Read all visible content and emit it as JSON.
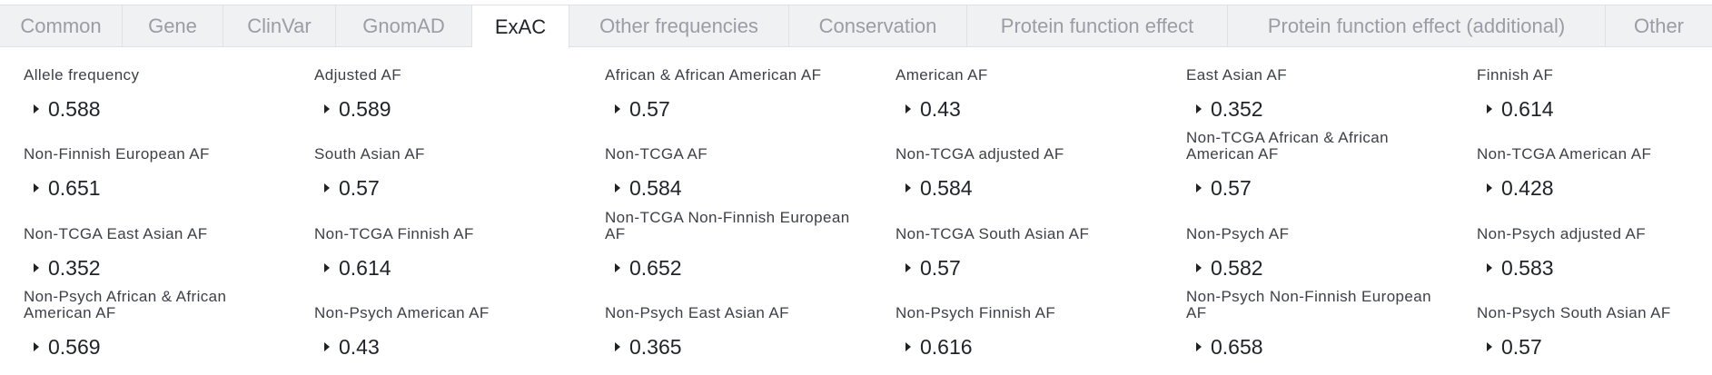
{
  "tabs": [
    {
      "label": "Common",
      "active": false
    },
    {
      "label": "Gene",
      "active": false
    },
    {
      "label": "ClinVar",
      "active": false
    },
    {
      "label": "GnomAD",
      "active": false
    },
    {
      "label": "ExAC",
      "active": true
    },
    {
      "label": "Other frequencies",
      "active": false
    },
    {
      "label": "Conservation",
      "active": false
    },
    {
      "label": "Protein function effect",
      "active": false
    },
    {
      "label": "Protein function effect (additional)",
      "active": false
    },
    {
      "label": "Other",
      "active": false
    }
  ],
  "fields": [
    {
      "label": "Allele frequency",
      "value": "0.588"
    },
    {
      "label": "Adjusted AF",
      "value": "0.589"
    },
    {
      "label": "African & African American AF",
      "value": "0.57"
    },
    {
      "label": "American AF",
      "value": "0.43"
    },
    {
      "label": "East Asian AF",
      "value": "0.352"
    },
    {
      "label": "Finnish AF",
      "value": "0.614"
    },
    {
      "label": "Non-Finnish European AF",
      "value": "0.651"
    },
    {
      "label": "South Asian AF",
      "value": "0.57"
    },
    {
      "label": "Non-TCGA AF",
      "value": "0.584"
    },
    {
      "label": "Non-TCGA adjusted AF",
      "value": "0.584"
    },
    {
      "label": "Non-TCGA African & African American AF",
      "value": "0.57"
    },
    {
      "label": "Non-TCGA American AF",
      "value": "0.428"
    },
    {
      "label": "Non-TCGA East Asian AF",
      "value": "0.352"
    },
    {
      "label": "Non-TCGA Finnish AF",
      "value": "0.614"
    },
    {
      "label": "Non-TCGA Non-Finnish European AF",
      "value": "0.652"
    },
    {
      "label": "Non-TCGA South Asian AF",
      "value": "0.57"
    },
    {
      "label": "Non-Psych AF",
      "value": "0.582"
    },
    {
      "label": "Non-Psych adjusted AF",
      "value": "0.583"
    },
    {
      "label": "Non-Psych African & African American AF",
      "value": "0.569"
    },
    {
      "label": "Non-Psych American AF",
      "value": "0.43"
    },
    {
      "label": "Non-Psych East Asian AF",
      "value": "0.365"
    },
    {
      "label": "Non-Psych Finnish AF",
      "value": "0.616"
    },
    {
      "label": "Non-Psych Non-Finnish European AF",
      "value": "0.658"
    },
    {
      "label": "Non-Psych South Asian AF",
      "value": "0.57"
    }
  ]
}
